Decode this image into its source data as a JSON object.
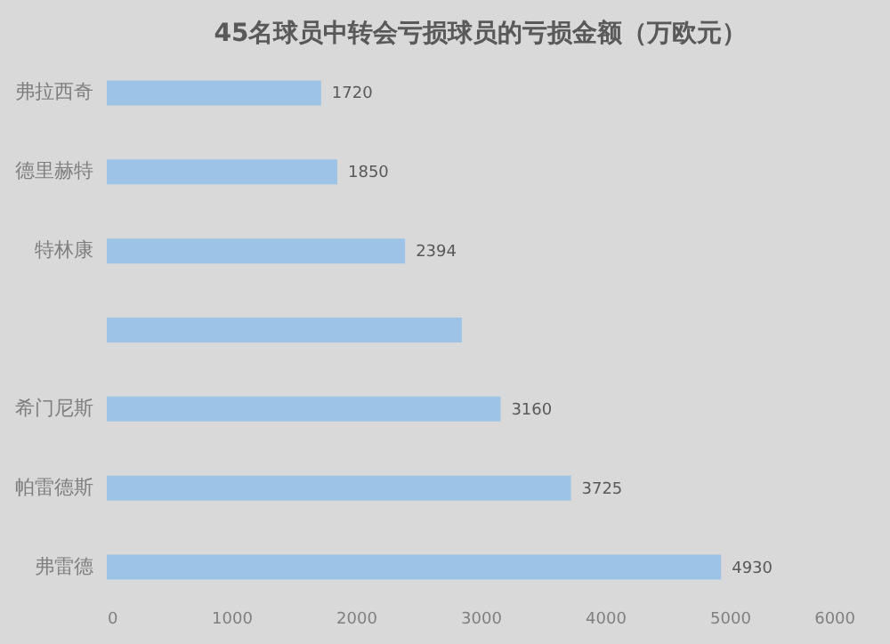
{
  "chart_data": {
    "type": "bar",
    "orientation": "horizontal",
    "title": "45名球员中转会亏损球员的亏损金额（万欧元）",
    "categories": [
      "弗拉西奇",
      "德里赫特",
      "特林康",
      null,
      "希门尼斯",
      "帕雷德斯",
      "弗雷德"
    ],
    "values": [
      1720,
      1850,
      2394,
      2850,
      3160,
      3725,
      4930
    ],
    "value_labels": [
      "1720",
      "1850",
      "2394",
      null,
      "3160",
      "3725",
      "4930"
    ],
    "color": "#9dc3e6",
    "xlim": [
      0,
      6000
    ],
    "xticks": [
      0,
      1000,
      2000,
      3000,
      4000,
      5000,
      6000
    ]
  }
}
